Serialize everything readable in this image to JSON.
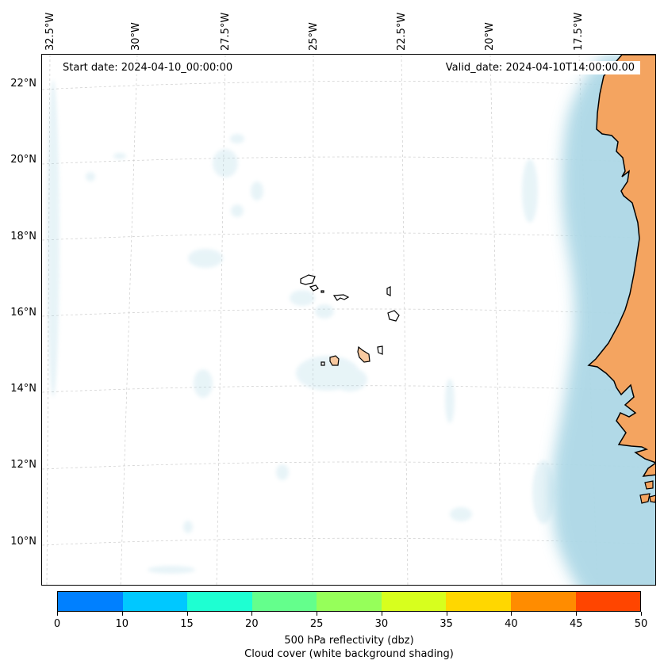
{
  "map": {
    "lon_labels": [
      "32.5°W",
      "30°W",
      "27.5°W",
      "25°W",
      "22.5°W",
      "20°W",
      "17.5°W"
    ],
    "lat_labels": [
      "22°N",
      "20°N",
      "18°N",
      "16°N",
      "14°N",
      "12°N",
      "10°N"
    ],
    "start_date": "Start date: 2024-04-10_00:00:00",
    "valid_date": "Valid_date: 2024-04-10T14:00:00.00",
    "colors": {
      "land": "#f4a460",
      "cloud": "#add8e6",
      "coast": "#000000",
      "grid": "#cccccc"
    }
  },
  "colorbar": {
    "ticks": [
      "0",
      "10",
      "15",
      "20",
      "25",
      "30",
      "35",
      "40",
      "45",
      "50"
    ],
    "colors": [
      "#0080ff",
      "#00c8ff",
      "#1effd2",
      "#64ff8c",
      "#96ff5a",
      "#d7ff1e",
      "#ffd700",
      "#ff8c00",
      "#ff4500"
    ],
    "label": "500 hPa reflectivity (dbz)",
    "sublabel": "Cloud cover (white background shading)"
  }
}
